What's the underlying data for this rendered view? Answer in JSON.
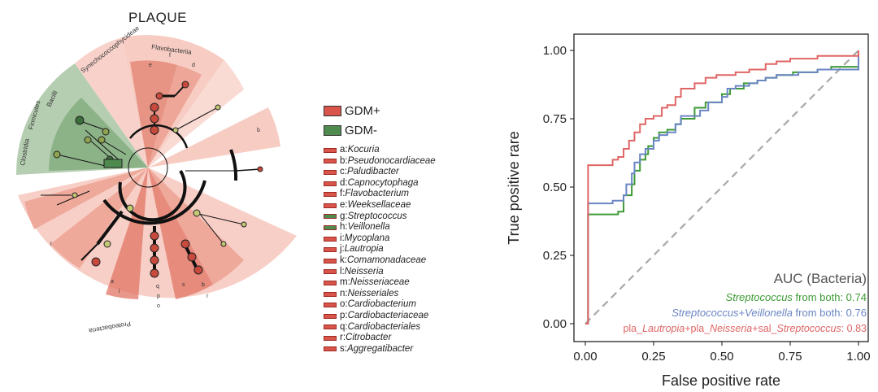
{
  "cladogram": {
    "title": "PLAQUE",
    "clade_labels": [
      "Flavobacteriia",
      "Synechococcophycideae",
      "Bacilli",
      "Firmicutes",
      "Clostridia",
      "Proteobacteria"
    ],
    "clade_letters": [
      "e",
      "f",
      "d",
      "b",
      "l",
      "i",
      "q",
      "p",
      "o",
      "s",
      "b",
      "r",
      "a"
    ],
    "groups": [
      {
        "label": "GDM+",
        "color": "#d9544a"
      },
      {
        "label": "GDM-",
        "color": "#4f8a4f"
      }
    ],
    "abbreviations": [
      {
        "code": "a:",
        "name": "Kocuria",
        "group": "GDM+"
      },
      {
        "code": "b:",
        "name": "Pseudonocardiaceae",
        "group": "GDM+"
      },
      {
        "code": "c:",
        "name": "Paludibacter",
        "group": "GDM+"
      },
      {
        "code": "d:",
        "name": "Capnocytophaga",
        "group": "GDM+"
      },
      {
        "code": "f:",
        "name": "Flavobacterium",
        "group": "GDM+"
      },
      {
        "code": "e:",
        "name": "Weeksellaceae",
        "group": "GDM+"
      },
      {
        "code": "g:",
        "name": "Streptococcus",
        "group": "GDM-"
      },
      {
        "code": "h:",
        "name": "Veillonella",
        "group": "GDM-"
      },
      {
        "code": "i:",
        "name": "Mycoplana",
        "group": "GDM+"
      },
      {
        "code": "j:",
        "name": "Lautropia",
        "group": "GDM+"
      },
      {
        "code": "k:",
        "name": "Comamonadaceae",
        "group": "GDM+"
      },
      {
        "code": "l:",
        "name": "Neisseria",
        "group": "GDM+"
      },
      {
        "code": "m:",
        "name": "Neisseriaceae",
        "group": "GDM+"
      },
      {
        "code": "n:",
        "name": "Neisseriales",
        "group": "GDM+"
      },
      {
        "code": "o:",
        "name": "Cardiobacterium",
        "group": "GDM+"
      },
      {
        "code": "p:",
        "name": "Cardiobacteriaceae",
        "group": "GDM+"
      },
      {
        "code": "q:",
        "name": "Cardiobacteriales",
        "group": "GDM+"
      },
      {
        "code": "r:",
        "name": "Citrobacter",
        "group": "GDM+"
      },
      {
        "code": "s:",
        "name": "Aggregatibacter",
        "group": "GDM+"
      }
    ]
  },
  "chart_data": {
    "type": "line",
    "title": "",
    "xlabel": "False positive rate",
    "ylabel": "True positive rare",
    "xlim": [
      0,
      1
    ],
    "ylim": [
      0,
      1
    ],
    "xticks": [
      "0.00",
      "0.25",
      "0.50",
      "0.75",
      "1.00"
    ],
    "yticks": [
      "0.00",
      "0.25",
      "0.50",
      "0.75",
      "1.00"
    ],
    "grid": false,
    "legend_title": "AUC (Bacteria)",
    "legend_position": "bottom-right",
    "diagonal": {
      "x": [
        0,
        1
      ],
      "y": [
        0,
        1
      ],
      "color": "#a9a9a9",
      "style": "dashed"
    },
    "series": [
      {
        "name": "Streptococcus from both: 0.74",
        "legend_parts": [
          {
            "text": "Streptococcus",
            "italic": true
          },
          {
            "text": " from both: 0.74",
            "italic": false
          }
        ],
        "color": "#3d9a35",
        "x": [
          0,
          0.01,
          0.01,
          0.06,
          0.12,
          0.14,
          0.14,
          0.17,
          0.18,
          0.2,
          0.22,
          0.23,
          0.25,
          0.27,
          0.28,
          0.3,
          0.33,
          0.35,
          0.38,
          0.4,
          0.44,
          0.47,
          0.5,
          0.53,
          0.55,
          0.58,
          0.6,
          0.63,
          0.66,
          0.7,
          0.73,
          0.76,
          0.8,
          0.85,
          0.9,
          0.95,
          1.0
        ],
        "y": [
          0,
          0,
          0.4,
          0.4,
          0.41,
          0.43,
          0.47,
          0.51,
          0.56,
          0.6,
          0.62,
          0.65,
          0.68,
          0.7,
          0.7,
          0.71,
          0.73,
          0.75,
          0.75,
          0.79,
          0.81,
          0.81,
          0.84,
          0.86,
          0.86,
          0.88,
          0.88,
          0.89,
          0.9,
          0.91,
          0.91,
          0.92,
          0.92,
          0.93,
          0.94,
          0.94,
          0.95
        ]
      },
      {
        "name": "Streptococcus+Veillonella from both: 0.76",
        "legend_parts": [
          {
            "text": "Streptococcus",
            "italic": true
          },
          {
            "text": "+",
            "italic": false
          },
          {
            "text": "Veillonella",
            "italic": true
          },
          {
            "text": " from both: 0.76",
            "italic": false
          }
        ],
        "color": "#6b86c4",
        "x": [
          0,
          0.01,
          0.01,
          0.05,
          0.1,
          0.14,
          0.15,
          0.17,
          0.18,
          0.2,
          0.22,
          0.25,
          0.27,
          0.3,
          0.33,
          0.35,
          0.38,
          0.42,
          0.45,
          0.5,
          0.52,
          0.55,
          0.6,
          0.63,
          0.66,
          0.7,
          0.73,
          0.78,
          0.85,
          0.9,
          0.95,
          1.0
        ],
        "y": [
          0,
          0,
          0.44,
          0.44,
          0.45,
          0.47,
          0.51,
          0.55,
          0.59,
          0.62,
          0.64,
          0.67,
          0.69,
          0.7,
          0.73,
          0.76,
          0.76,
          0.78,
          0.81,
          0.83,
          0.86,
          0.87,
          0.88,
          0.89,
          0.9,
          0.91,
          0.91,
          0.92,
          0.93,
          0.93,
          0.93,
          1.0
        ]
      },
      {
        "name": "pla_Lautropia+pla_Neisseria+sal_Streptococcus: 0.83",
        "legend_parts": [
          {
            "text": "pla_",
            "italic": false
          },
          {
            "text": "Lautropia",
            "italic": true
          },
          {
            "text": "+pla_",
            "italic": false
          },
          {
            "text": "Neisseria",
            "italic": true
          },
          {
            "text": "+sal_",
            "italic": false
          },
          {
            "text": "Streptococcus",
            "italic": true
          },
          {
            "text": ": 0.83",
            "italic": false
          }
        ],
        "color": "#e06666",
        "x": [
          0,
          0.01,
          0.01,
          0.06,
          0.1,
          0.12,
          0.14,
          0.16,
          0.18,
          0.2,
          0.22,
          0.25,
          0.28,
          0.3,
          0.33,
          0.35,
          0.38,
          0.4,
          0.44,
          0.48,
          0.5,
          0.55,
          0.6,
          0.63,
          0.66,
          0.7,
          0.75,
          0.8,
          0.85,
          0.9,
          0.95,
          1.0
        ],
        "y": [
          0,
          0,
          0.58,
          0.58,
          0.6,
          0.61,
          0.64,
          0.67,
          0.7,
          0.73,
          0.75,
          0.76,
          0.79,
          0.8,
          0.83,
          0.86,
          0.86,
          0.88,
          0.9,
          0.91,
          0.91,
          0.92,
          0.93,
          0.93,
          0.95,
          0.96,
          0.97,
          0.97,
          0.98,
          0.98,
          0.98,
          1.0
        ]
      }
    ]
  }
}
